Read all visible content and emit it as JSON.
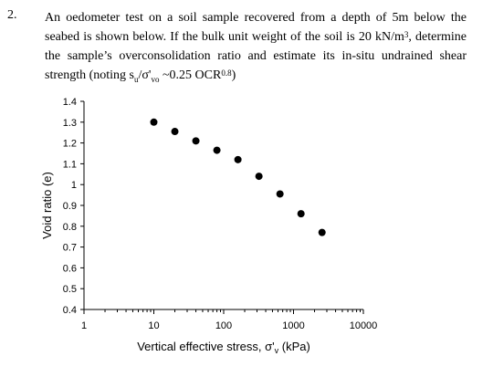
{
  "question": {
    "number": "2.",
    "line1": "An oedometer test on a soil sample recovered from a depth of 5m below the",
    "line2_a": "seabed is shown below. If the bulk unit weight of the soil is 20 kN/m",
    "line2_sup": "3",
    "line2_b": ", determine",
    "line3": "the sample’s overconsolidation ratio and estimate its in-situ undrained shear",
    "line4_a": "strength (noting s",
    "line4_sub1": "u",
    "line4_b": "/σ'",
    "line4_sub2": "vo",
    "line4_c": " ~0.25 OCR",
    "line4_sup": "0.8",
    "line4_d": ")"
  },
  "chart_data": {
    "type": "scatter",
    "xscale": "log",
    "xlim": [
      1,
      10000
    ],
    "ylim": [
      0.4,
      1.4
    ],
    "xticks": [
      "1",
      "10",
      "100",
      "1000",
      "10000"
    ],
    "yticks": [
      "0.4",
      "0.5",
      "0.6",
      "0.7",
      "0.8",
      "0.9",
      "1",
      "1.1",
      "1.2",
      "1.3",
      "1.4"
    ],
    "xlabel": "Vertical effective stress, σ'v (kPa)",
    "ylabel": "Void ratio (e)",
    "grid": false,
    "points": [
      {
        "x": 10,
        "y": 1.3
      },
      {
        "x": 20,
        "y": 1.255
      },
      {
        "x": 40,
        "y": 1.21
      },
      {
        "x": 80,
        "y": 1.165
      },
      {
        "x": 160,
        "y": 1.12
      },
      {
        "x": 320,
        "y": 1.04
      },
      {
        "x": 640,
        "y": 0.955
      },
      {
        "x": 1280,
        "y": 0.86
      },
      {
        "x": 2560,
        "y": 0.77
      }
    ],
    "marker_color": "#000000"
  }
}
